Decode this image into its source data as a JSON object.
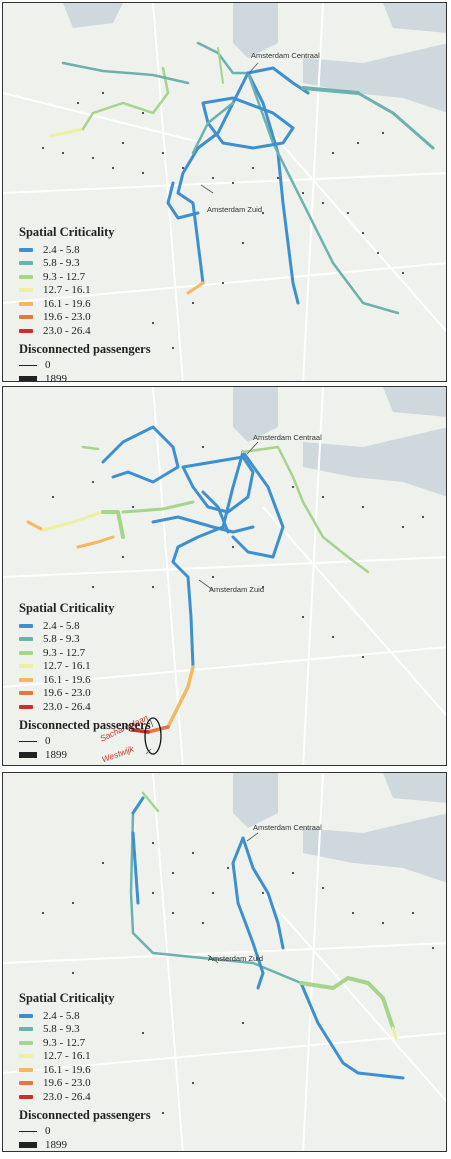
{
  "legend": {
    "title": "Spatial Criticality",
    "classes": [
      {
        "label": "2.4 - 5.8",
        "color": "#3d8fd0"
      },
      {
        "label": "5.8 - 9.3",
        "color": "#6bb1ad"
      },
      {
        "label": "9.3 - 12.7",
        "color": "#a5d48b"
      },
      {
        "label": "12.7 - 16.1",
        "color": "#eef0a0"
      },
      {
        "label": "16.1 - 19.6",
        "color": "#f3b861"
      },
      {
        "label": "19.6 - 23.0",
        "color": "#e8753d"
      },
      {
        "label": "23.0 - 26.4",
        "color": "#cf2d26"
      }
    ],
    "disconnected_title": "Disconnected passengers",
    "disconnected": [
      {
        "label": "0"
      },
      {
        "label": "1899"
      }
    ]
  },
  "places": {
    "centraal": "Amsterdam Centraal",
    "zuid": "Amsterdam Zuid"
  },
  "annotations": {
    "sacharovlaan": "Sacharovlaan",
    "westwijk": "Westwijk"
  },
  "colors": {
    "background": "#eef1ec",
    "water": "#cfd8dd",
    "roads": "#ffffff",
    "stops": "#222222"
  },
  "panels": [
    {
      "id": "panel-1"
    },
    {
      "id": "panel-2"
    },
    {
      "id": "panel-3"
    }
  ]
}
